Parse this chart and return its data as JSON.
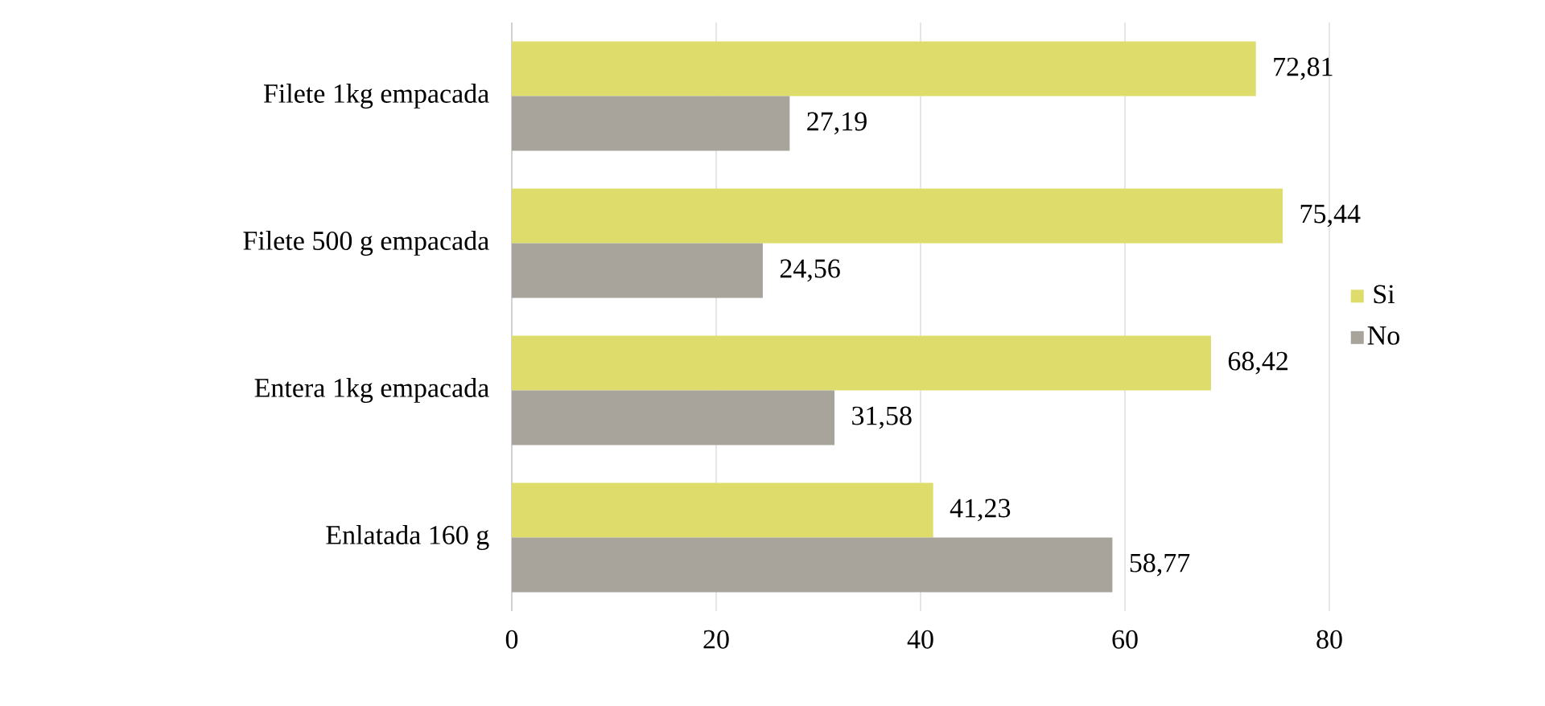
{
  "chart_data": {
    "type": "bar",
    "orientation": "horizontal",
    "categories": [
      "Filete 1kg empacada",
      "Filete  500 g empacada",
      "Entera 1kg empacada",
      "Enlatada 160 g"
    ],
    "series": [
      {
        "name": "Si",
        "color": "#dedd6c",
        "values": [
          72.81,
          75.44,
          68.42,
          41.23
        ],
        "value_labels": [
          "72,81",
          "75,44",
          "68,42",
          "41,23"
        ]
      },
      {
        "name": "No",
        "color": "#a8a39b",
        "values": [
          27.19,
          24.56,
          31.58,
          58.77
        ],
        "value_labels": [
          "27,19",
          "24,56",
          "31,58",
          "58,77"
        ]
      }
    ],
    "xlim": [
      0,
      80
    ],
    "xticks": [
      0,
      20,
      40,
      60,
      80
    ],
    "grid": "x",
    "legend": "right"
  }
}
